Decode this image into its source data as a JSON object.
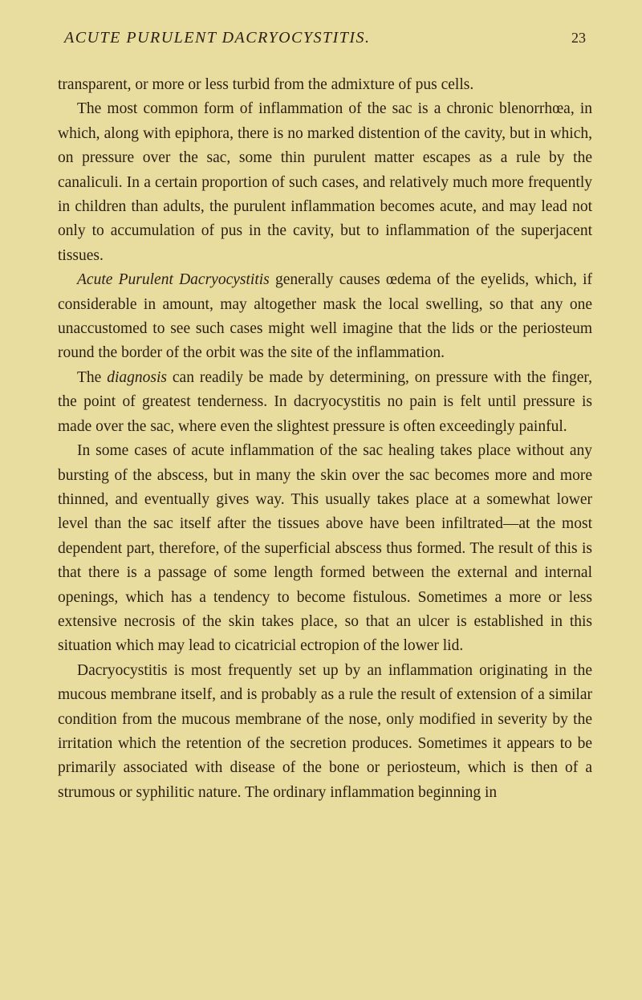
{
  "header": {
    "title": "ACUTE PURULENT DACRYOCYSTITIS.",
    "page_number": "23"
  },
  "paragraphs": {
    "p1": "transparent, or more or less turbid from the admixture of pus cells.",
    "p2_pre": "The most common form of inflammation of the sac is a chronic blenorrhœa, in which, along with epiphora, there is no marked distention of the cavity, but in which, on pressure over the sac, some thin purulent matter escapes as a rule by the canaliculi. In a certain proportion of such cases, and relatively much more frequently in children than adults, the purulent inflammation becomes acute, and may lead not only to accumulation of pus in the cavity, but to inflammation of the superjacent tissues.",
    "p3_italic": "Acute Purulent Dacryocystitis",
    "p3_rest": " generally causes œdema of the eyelids, which, if considerable in amount, may altogether mask the local swelling, so that any one unaccustomed to see such cases might well imagine that the lids or the periosteum round the border of the orbit was the site of the inflammation.",
    "p4_pre": "The ",
    "p4_italic": "diagnosis",
    "p4_rest": " can readily be made by determining, on pressure with the finger, the point of greatest tenderness. In dacryocystitis no pain is felt until pressure is made over the sac, where even the slightest pressure is often exceedingly painful.",
    "p5": "In some cases of acute inflammation of the sac healing takes place without any bursting of the abscess, but in many the skin over the sac becomes more and more thinned, and eventually gives way. This usually takes place at a somewhat lower level than the sac itself after the tissues above have been infiltrated—at the most dependent part, therefore, of the superficial abscess thus formed. The result of this is that there is a passage of some length formed between the external and internal openings, which has a tendency to become fistulous. Sometimes a more or less extensive necrosis of the skin takes place, so that an ulcer is established in this situation which may lead to cicatricial ectropion of the lower lid.",
    "p6": "Dacryocystitis is most frequently set up by an inflammation originating in the mucous membrane itself, and is probably as a rule the result of extension of a similar condition from the mucous membrane of the nose, only modified in severity by the irritation which the retention of the secretion produces. Sometimes it appears to be primarily associated with disease of the bone or periosteum, which is then of a strumous or syphilitic nature. The ordinary inflammation beginning in"
  },
  "colors": {
    "background": "#e8dd9f",
    "text": "#2a2014"
  }
}
